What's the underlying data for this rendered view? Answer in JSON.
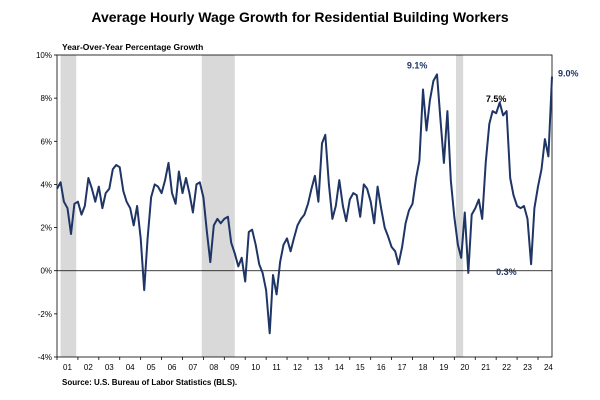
{
  "chart_data": {
    "type": "line",
    "title": "Average Hourly Wage Growth for Residential Building Workers",
    "ylabel": "Year-Over-Year Percentage Growth",
    "xlabel": "",
    "source": "Source: U.S. Bureau of Labor Statistics (BLS).",
    "ylim": [
      -4,
      10
    ],
    "xlim": [
      2001.0,
      2024.67
    ],
    "yticks": [
      "-4%",
      "-2%",
      "0%",
      "2%",
      "4%",
      "6%",
      "8%",
      "10%"
    ],
    "ytick_values": [
      -4,
      -2,
      0,
      2,
      4,
      6,
      8,
      10
    ],
    "xticks": [
      "01",
      "02",
      "03",
      "04",
      "05",
      "06",
      "07",
      "08",
      "09",
      "10",
      "11",
      "12",
      "13",
      "14",
      "15",
      "16",
      "17",
      "18",
      "19",
      "20",
      "21",
      "22",
      "23",
      "24"
    ],
    "recessions": [
      [
        2001.17,
        2001.92
      ],
      [
        2007.92,
        2009.5
      ],
      [
        2020.08,
        2020.42
      ]
    ],
    "line_color": "#1f3566",
    "recession_color": "#d9d9d9",
    "grid": false,
    "legend": "none",
    "annotations": [
      {
        "text": "9.1%",
        "x": 2019.0,
        "y": 9.1,
        "color": "#1f3566"
      },
      {
        "text": "7.5%",
        "x": 2022.0,
        "y": 7.5,
        "color": "#000000"
      },
      {
        "text": "0.3%",
        "x": 2023.17,
        "y": 0.3,
        "color": "#1f3566"
      },
      {
        "text": "9.0%",
        "x": 2024.67,
        "y": 9.0,
        "color": "#1f3566"
      }
    ],
    "series": [
      {
        "x": [
          2001.0,
          2001.17,
          2001.33,
          2001.5,
          2001.67,
          2001.83,
          2002.0,
          2002.17,
          2002.33,
          2002.5,
          2002.67,
          2002.83,
          2003.0,
          2003.17,
          2003.33,
          2003.5,
          2003.67,
          2003.83,
          2004.0,
          2004.17,
          2004.33,
          2004.5,
          2004.67,
          2004.83,
          2005.0,
          2005.17,
          2005.33,
          2005.5,
          2005.67,
          2005.83,
          2006.0,
          2006.17,
          2006.33,
          2006.5,
          2006.67,
          2006.83,
          2007.0,
          2007.17,
          2007.33,
          2007.5,
          2007.67,
          2007.83,
          2008.0,
          2008.17,
          2008.33,
          2008.5,
          2008.67,
          2008.83,
          2009.0,
          2009.17,
          2009.33,
          2009.5,
          2009.67,
          2009.83,
          2010.0,
          2010.17,
          2010.33,
          2010.5,
          2010.67,
          2010.83,
          2011.0,
          2011.17,
          2011.33,
          2011.5,
          2011.67,
          2011.83,
          2012.0,
          2012.17,
          2012.33,
          2012.5,
          2012.67,
          2012.83,
          2013.0,
          2013.17,
          2013.33,
          2013.5,
          2013.67,
          2013.83,
          2014.0,
          2014.17,
          2014.33,
          2014.5,
          2014.67,
          2014.83,
          2015.0,
          2015.17,
          2015.33,
          2015.5,
          2015.67,
          2015.83,
          2016.0,
          2016.17,
          2016.33,
          2016.5,
          2016.67,
          2016.83,
          2017.0,
          2017.17,
          2017.33,
          2017.5,
          2017.67,
          2017.83,
          2018.0,
          2018.17,
          2018.33,
          2018.5,
          2018.67,
          2018.83,
          2019.0,
          2019.17,
          2019.33,
          2019.5,
          2019.67,
          2019.83,
          2020.0,
          2020.17,
          2020.33,
          2020.5,
          2020.67,
          2020.83,
          2021.0,
          2021.17,
          2021.33,
          2021.5,
          2021.67,
          2021.83,
          2022.0,
          2022.17,
          2022.33,
          2022.5,
          2022.67,
          2022.83,
          2023.0,
          2023.17,
          2023.33,
          2023.5,
          2023.67,
          2023.83,
          2024.0,
          2024.17,
          2024.33,
          2024.5,
          2024.67
        ],
        "values": [
          3.8,
          4.1,
          3.2,
          2.9,
          1.7,
          3.1,
          3.2,
          2.6,
          3.0,
          4.3,
          3.8,
          3.2,
          3.9,
          2.9,
          3.6,
          3.8,
          4.7,
          4.9,
          4.8,
          3.7,
          3.2,
          2.9,
          2.1,
          3.0,
          1.5,
          -0.9,
          1.5,
          3.4,
          4.0,
          3.9,
          3.6,
          4.2,
          5.0,
          3.6,
          3.1,
          4.6,
          3.6,
          4.3,
          3.6,
          2.7,
          4.0,
          4.1,
          3.4,
          1.8,
          0.4,
          2.1,
          2.4,
          2.2,
          2.4,
          2.5,
          1.3,
          0.8,
          0.2,
          0.6,
          -0.5,
          1.8,
          1.9,
          1.2,
          0.3,
          -0.1,
          -0.9,
          -2.9,
          -0.2,
          -1.1,
          0.4,
          1.2,
          1.5,
          0.9,
          1.5,
          2.1,
          2.4,
          2.6,
          3.1,
          3.8,
          4.4,
          3.2,
          5.9,
          6.3,
          4.0,
          2.4,
          3.0,
          4.2,
          3.0,
          2.3,
          3.3,
          3.6,
          3.5,
          2.5,
          4.0,
          3.8,
          3.2,
          2.2,
          3.9,
          2.9,
          2.0,
          1.6,
          1.1,
          0.9,
          0.3,
          1.1,
          2.2,
          2.8,
          3.1,
          4.3,
          5.1,
          8.4,
          6.5,
          7.9,
          8.8,
          9.1,
          7.1,
          5.0,
          7.4,
          4.2,
          2.5,
          1.2,
          0.6,
          2.7,
          -0.1,
          2.6,
          2.9,
          3.3,
          2.4,
          5.0,
          6.8,
          7.4,
          7.3,
          7.8,
          7.2,
          7.4,
          4.3,
          3.5,
          3.0,
          2.9,
          3.0,
          2.4,
          0.3,
          2.9,
          3.9,
          4.7,
          6.1,
          5.3,
          9.0
        ]
      }
    ]
  }
}
